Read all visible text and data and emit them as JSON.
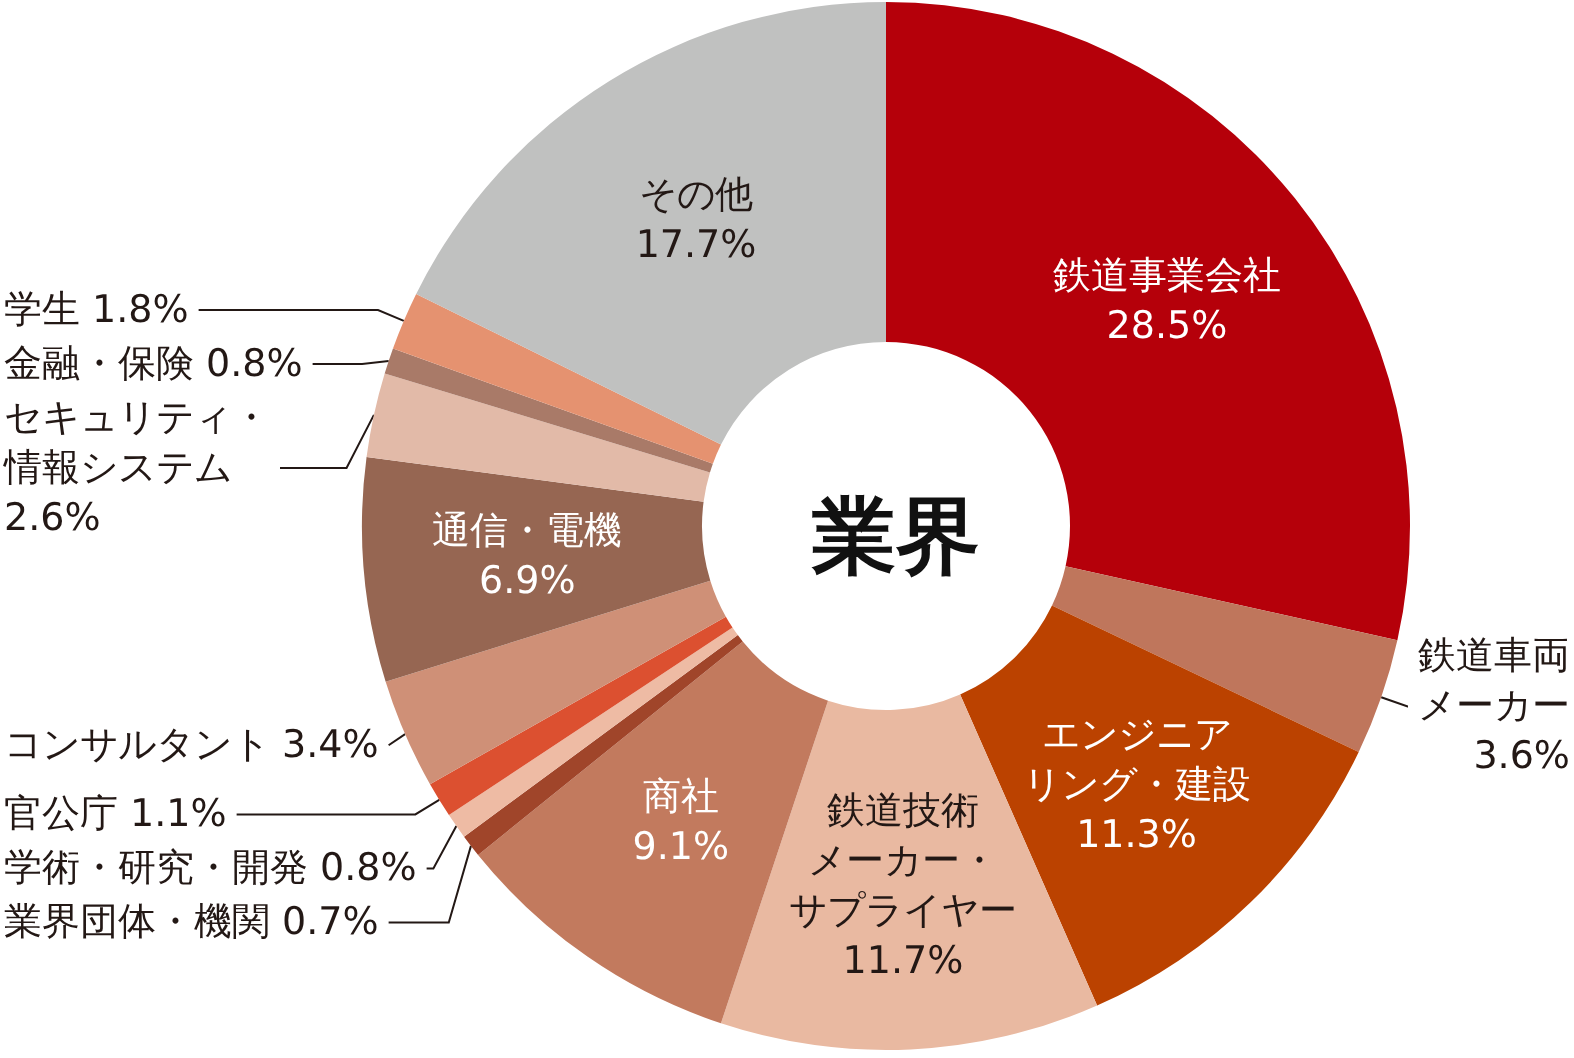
{
  "chart_data": {
    "type": "donut",
    "title": "業界",
    "categories": [
      "鉄道事業会社",
      "鉄道車両メーカー",
      "エンジニアリング・建設",
      "鉄道技術メーカー・サプライヤー",
      "商社",
      "業界団体・機関",
      "学術・研究・開発",
      "官公庁",
      "コンサルタント",
      "通信・電機",
      "セキュリティ・情報システム",
      "金融・保険",
      "学生",
      "その他"
    ],
    "values": [
      28.5,
      3.6,
      11.3,
      11.7,
      9.1,
      0.7,
      0.8,
      1.1,
      3.4,
      6.9,
      2.6,
      0.8,
      1.8,
      17.7
    ],
    "colors": [
      "#b5000a",
      "#bf765c",
      "#bb4200",
      "#e9b9a1",
      "#c27a5e",
      "#a0452a",
      "#eebba4",
      "#dc5030",
      "#cf9077",
      "#966652",
      "#e2baa8",
      "#a97a68",
      "#e59270",
      "#c0c1c0"
    ],
    "value_labels": [
      "28.5%",
      "3.6%",
      "11.3%",
      "11.7%",
      "9.1%",
      "0.7%",
      "0.8%",
      "1.1%",
      "3.4%",
      "6.9%",
      "2.6%",
      "0.8%",
      "1.8%",
      "17.7%"
    ]
  }
}
